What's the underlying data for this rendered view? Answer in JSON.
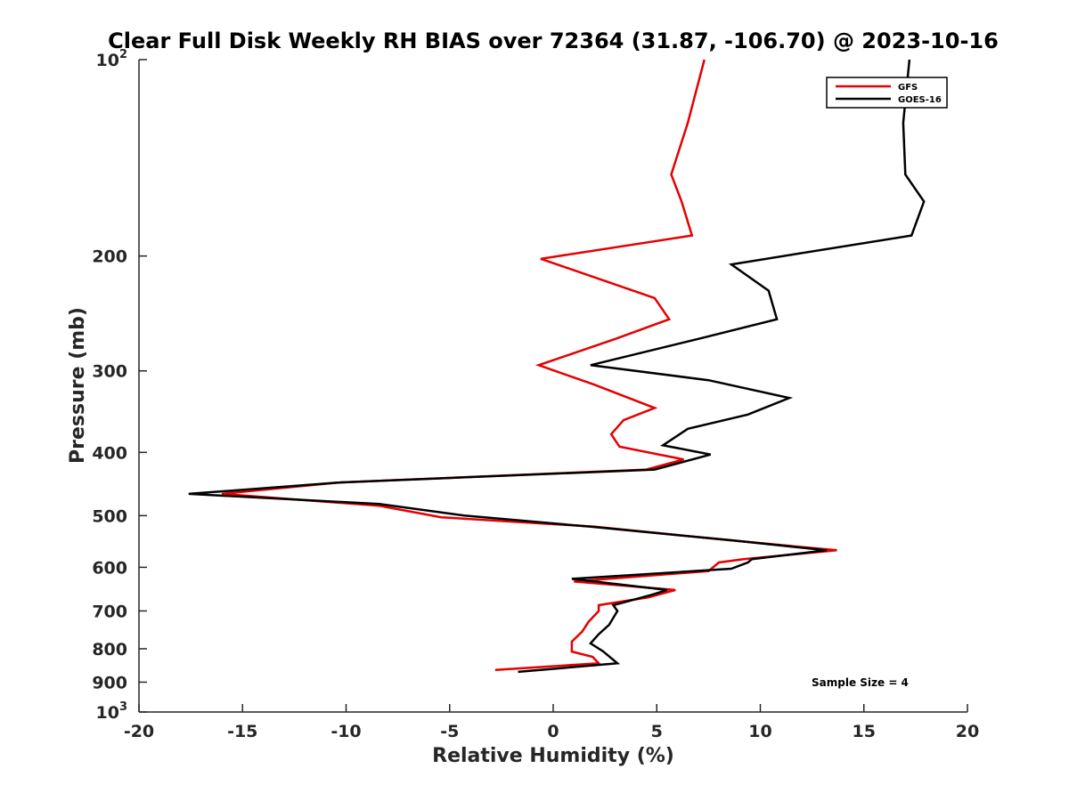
{
  "chart_data": {
    "type": "line",
    "title": "Clear Full Disk Weekly RH BIAS over 72364 (31.87, -106.70) @ 2023-10-16",
    "xlabel": "Relative Humidity (%)",
    "ylabel": "Pressure (mb)",
    "xlim": [
      -20,
      20
    ],
    "ylim": [
      100,
      1000
    ],
    "y_scale": "log",
    "y_reversed": true,
    "x_ticks": [
      "-20",
      "-15",
      "-10",
      "-5",
      "0",
      "5",
      "10",
      "15",
      "20"
    ],
    "y_ticks": [
      {
        "value": 100,
        "base": "10",
        "exp": "2"
      },
      {
        "value": 200,
        "label": "200"
      },
      {
        "value": 300,
        "label": "300"
      },
      {
        "value": 400,
        "label": "400"
      },
      {
        "value": 500,
        "label": "500"
      },
      {
        "value": 600,
        "label": "600"
      },
      {
        "value": 700,
        "label": "700"
      },
      {
        "value": 800,
        "label": "800"
      },
      {
        "value": 900,
        "label": "900"
      },
      {
        "value": 1000,
        "base": "10",
        "exp": "3"
      }
    ],
    "grid": false,
    "legend_position": "top-right",
    "annotation": "Sample Size = 4",
    "series": [
      {
        "name": "GFS",
        "color": "#e50000",
        "points": [
          [
            7.3,
            100
          ],
          [
            6.5,
            125
          ],
          [
            5.7,
            150
          ],
          [
            6.2,
            165
          ],
          [
            6.7,
            186
          ],
          [
            -0.6,
            202
          ],
          [
            4.9,
            232
          ],
          [
            5.6,
            250
          ],
          [
            3.0,
            268
          ],
          [
            -0.7,
            294
          ],
          [
            2.0,
            315
          ],
          [
            4.9,
            342
          ],
          [
            3.4,
            357
          ],
          [
            2.8,
            375
          ],
          [
            3.2,
            392
          ],
          [
            6.3,
            410
          ],
          [
            4.5,
            425
          ],
          [
            -10.4,
            445
          ],
          [
            -16.0,
            463
          ],
          [
            -8.4,
            483
          ],
          [
            -5.4,
            503
          ],
          [
            2.0,
            520
          ],
          [
            8.4,
            545
          ],
          [
            13.7,
            565
          ],
          [
            9.2,
            583
          ],
          [
            8.0,
            590
          ],
          [
            7.5,
            608
          ],
          [
            1.0,
            631
          ],
          [
            5.9,
            650
          ],
          [
            4.6,
            667
          ],
          [
            2.2,
            686
          ],
          [
            2.2,
            700
          ],
          [
            1.7,
            728
          ],
          [
            1.4,
            753
          ],
          [
            0.9,
            780
          ],
          [
            0.9,
            808
          ],
          [
            1.9,
            823
          ],
          [
            2.2,
            842
          ],
          [
            -2.8,
            862
          ]
        ]
      },
      {
        "name": "GOES-16",
        "color": "#000000",
        "points": [
          [
            17.2,
            100
          ],
          [
            16.9,
            125
          ],
          [
            17.0,
            150
          ],
          [
            17.9,
            165
          ],
          [
            17.3,
            186
          ],
          [
            8.6,
            206
          ],
          [
            10.4,
            226
          ],
          [
            10.8,
            250
          ],
          [
            7.0,
            268
          ],
          [
            1.8,
            294
          ],
          [
            7.5,
            310
          ],
          [
            11.4,
            330
          ],
          [
            9.4,
            350
          ],
          [
            6.5,
            368
          ],
          [
            5.3,
            390
          ],
          [
            7.6,
            403
          ],
          [
            4.9,
            425
          ],
          [
            -10.4,
            445
          ],
          [
            -17.6,
            463
          ],
          [
            -8.4,
            480
          ],
          [
            -4.3,
            500
          ],
          [
            1.8,
            520
          ],
          [
            8.5,
            545
          ],
          [
            13.2,
            565
          ],
          [
            9.6,
            583
          ],
          [
            9.4,
            590
          ],
          [
            8.6,
            603
          ],
          [
            0.9,
            625
          ],
          [
            5.5,
            650
          ],
          [
            4.7,
            662
          ],
          [
            2.9,
            686
          ],
          [
            3.1,
            700
          ],
          [
            2.7,
            735
          ],
          [
            2.2,
            760
          ],
          [
            1.8,
            785
          ],
          [
            2.4,
            807
          ],
          [
            3.1,
            842
          ],
          [
            -1.7,
            868
          ]
        ]
      }
    ]
  }
}
